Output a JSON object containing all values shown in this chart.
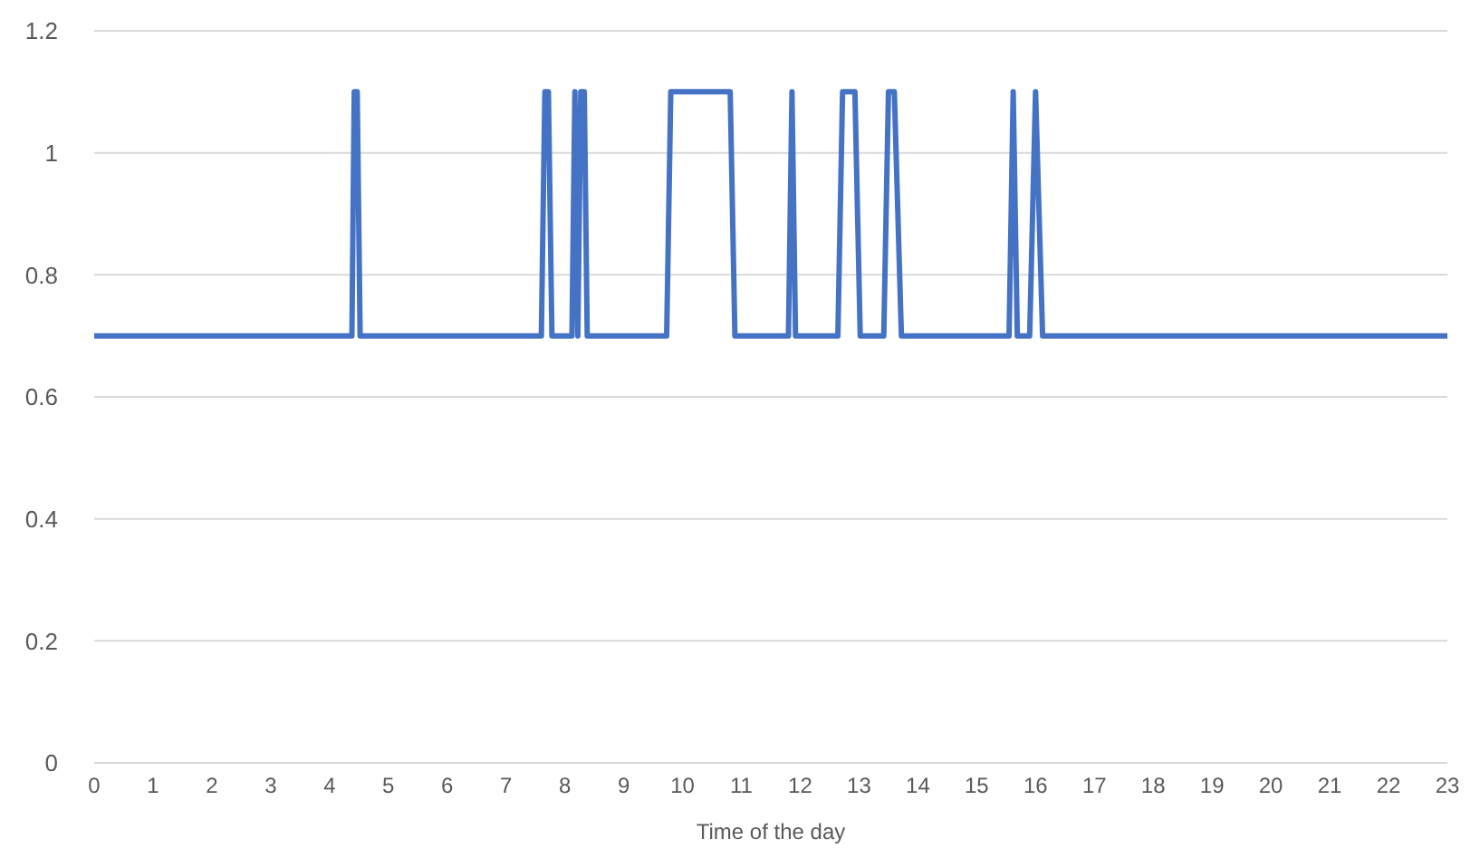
{
  "chart_data": {
    "type": "line",
    "xlabel": "Time of the day",
    "x": [
      0,
      4.38,
      4.42,
      4.47,
      4.52,
      7.6,
      7.66,
      7.72,
      7.78,
      8.12,
      8.17,
      8.22,
      8.27,
      8.33,
      8.38,
      9.73,
      9.8,
      10.81,
      10.89,
      11.8,
      11.86,
      11.92,
      12.64,
      12.72,
      12.93,
      13.02,
      13.42,
      13.5,
      13.6,
      13.72,
      15.55,
      15.62,
      15.69,
      15.9,
      16.0,
      16.12,
      23
    ],
    "series": [
      {
        "color": "#4472c4",
        "values": [
          0.7,
          0.7,
          1.1,
          1.1,
          0.7,
          0.7,
          1.1,
          1.1,
          0.7,
          0.7,
          1.1,
          0.7,
          1.1,
          1.1,
          0.7,
          0.7,
          1.1,
          1.1,
          0.7,
          0.7,
          1.1,
          0.7,
          0.7,
          1.1,
          1.1,
          0.7,
          0.7,
          1.1,
          1.1,
          0.7,
          0.7,
          1.1,
          0.7,
          0.7,
          1.1,
          0.7,
          0.7
        ]
      }
    ],
    "xlim": [
      0,
      23
    ],
    "xticks": [
      0,
      1,
      2,
      3,
      4,
      5,
      6,
      7,
      8,
      9,
      10,
      11,
      12,
      13,
      14,
      15,
      16,
      17,
      18,
      19,
      20,
      21,
      22,
      23
    ],
    "ylim": [
      0,
      1.2
    ],
    "yticks": [
      0,
      0.2,
      0.4,
      0.6,
      0.8,
      1,
      1.2
    ],
    "grid": "y",
    "legend": false,
    "marker": "none",
    "line_style": "solid"
  }
}
